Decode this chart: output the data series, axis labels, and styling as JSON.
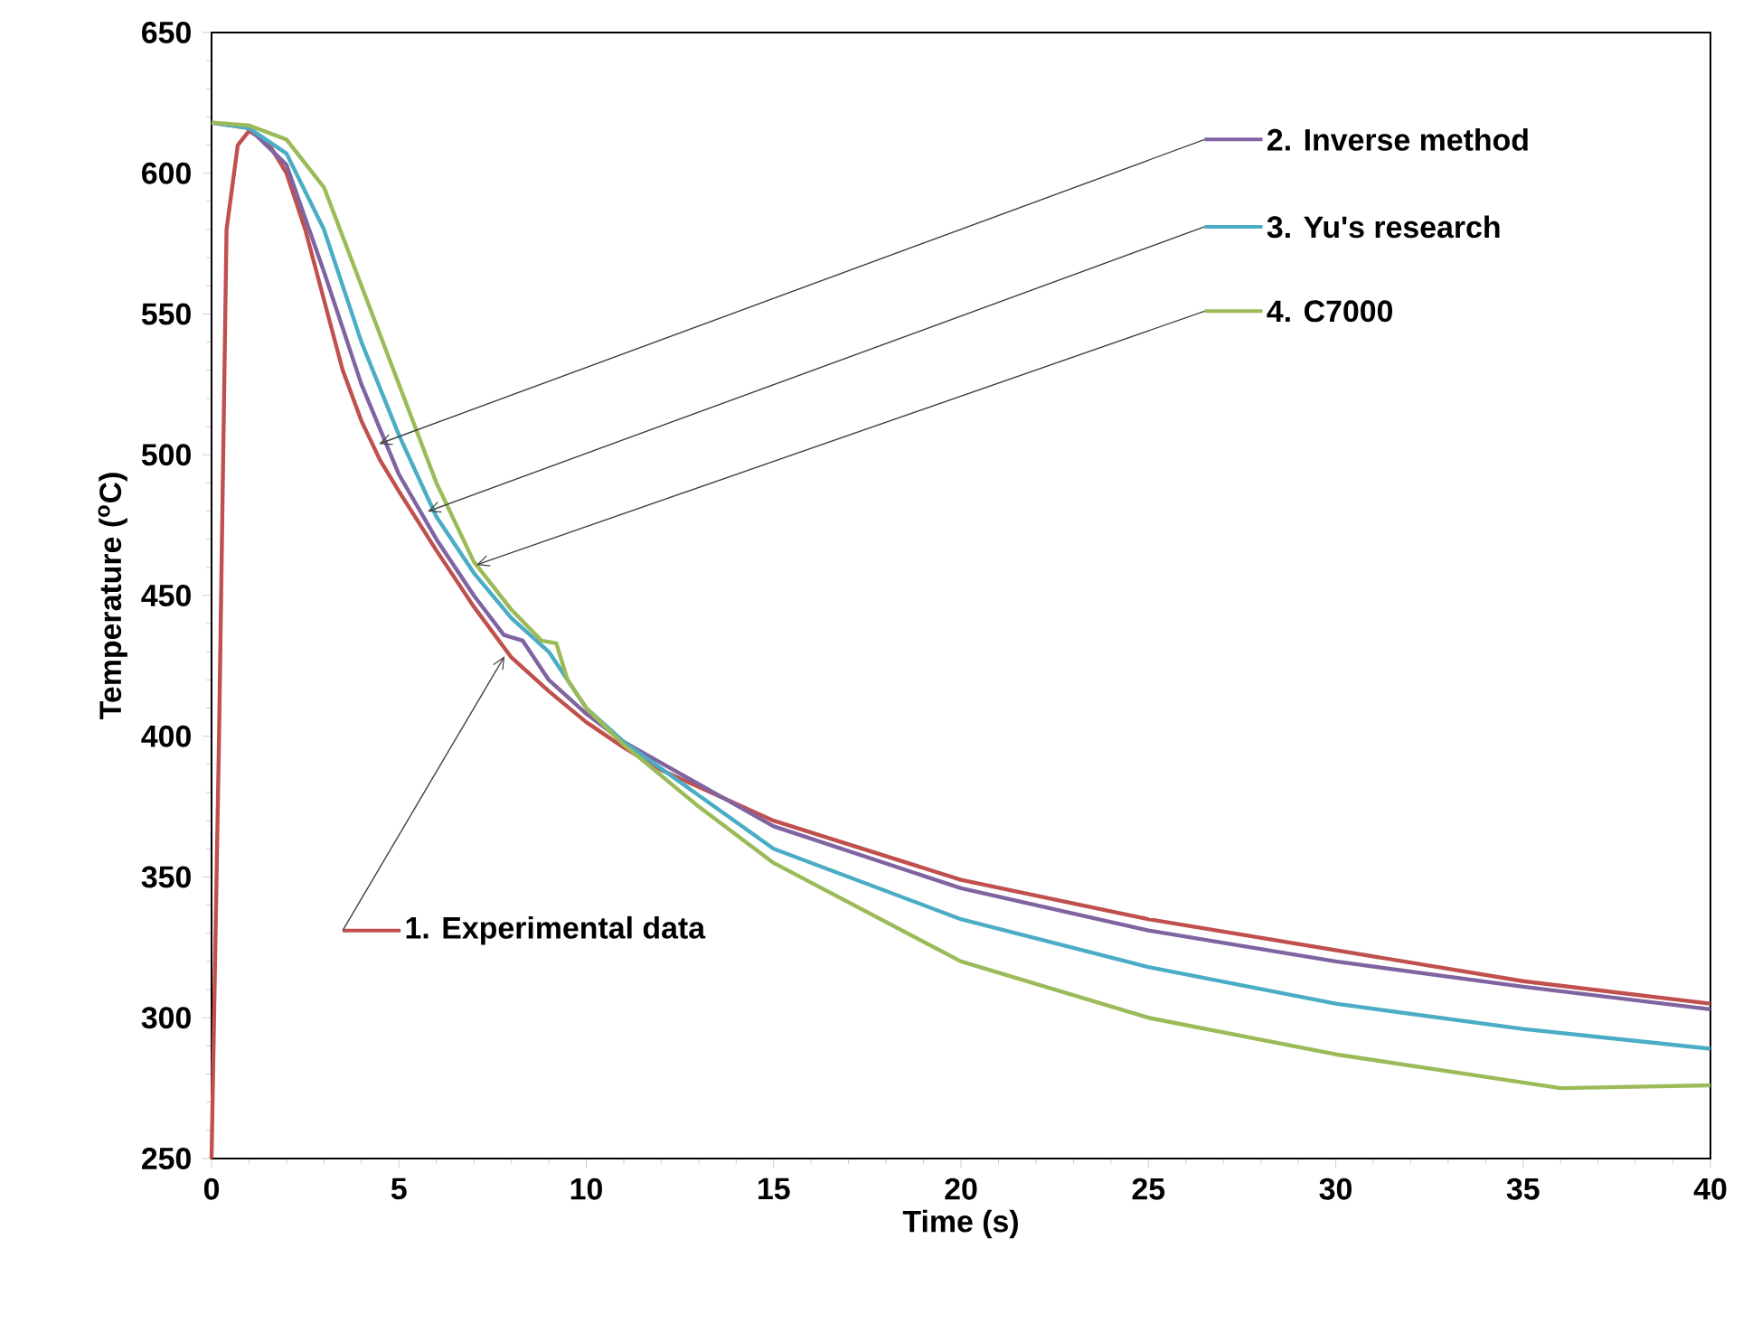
{
  "chart_data": {
    "type": "line",
    "xlabel": "Time (s)",
    "ylabel": "Temperature ($^{o}$C)",
    "xlim": [
      0,
      40
    ],
    "ylim": [
      250,
      650
    ],
    "xticks": [
      0,
      5,
      10,
      15,
      20,
      25,
      30,
      35,
      40
    ],
    "yticks": [
      250,
      300,
      350,
      400,
      450,
      500,
      550,
      600,
      650
    ],
    "grid": false,
    "legend": "top right",
    "marker": "none",
    "line_style": "solid",
    "series": [
      {
        "name": "1. Experimental data",
        "color": "#c0504d",
        "x": [
          0,
          0.2,
          0.4,
          0.7,
          1,
          1.5,
          2,
          2.5,
          3,
          3.5,
          4,
          4.5,
          5,
          6,
          7,
          8,
          9,
          10,
          11,
          12,
          15,
          20,
          25,
          30,
          35,
          40
        ],
        "values": [
          250,
          400,
          580,
          610,
          615,
          611,
          600,
          580,
          555,
          530,
          512,
          498,
          487,
          466,
          446,
          428,
          416,
          405,
          396,
          388,
          370,
          349,
          335,
          324,
          313,
          305
        ]
      },
      {
        "name": "2. Inverse method",
        "color": "#8064a2",
        "x": [
          0,
          1,
          2,
          3,
          4,
          5,
          6,
          7,
          7.8,
          8.3,
          9,
          10,
          11,
          15,
          20,
          25,
          30,
          35,
          40
        ],
        "values": [
          618,
          616,
          603,
          565,
          525,
          493,
          470,
          450,
          436,
          434,
          420,
          408,
          398,
          368,
          346,
          331,
          320,
          311,
          303
        ]
      },
      {
        "name": "3. Yu's research",
        "color": "#4bacc6",
        "x": [
          0,
          1,
          2,
          3,
          4,
          5,
          6,
          7,
          8,
          9,
          10,
          11,
          15,
          20,
          25,
          30,
          35,
          40
        ],
        "values": [
          618,
          616,
          607,
          580,
          540,
          507,
          478,
          458,
          442,
          430,
          410,
          398,
          360,
          335,
          318,
          305,
          296,
          289
        ]
      },
      {
        "name": "4. C7000",
        "color": "#9bbb59",
        "x": [
          0,
          1,
          2,
          3,
          4,
          5,
          6,
          7,
          8,
          8.8,
          9.2,
          9.5,
          10,
          11,
          13,
          15,
          20,
          25,
          30,
          35,
          36,
          40
        ],
        "values": [
          618,
          617,
          612,
          595,
          560,
          525,
          490,
          462,
          445,
          434,
          433,
          420,
          410,
          397,
          375,
          355,
          320,
          300,
          287,
          277,
          275,
          276
        ]
      }
    ]
  }
}
